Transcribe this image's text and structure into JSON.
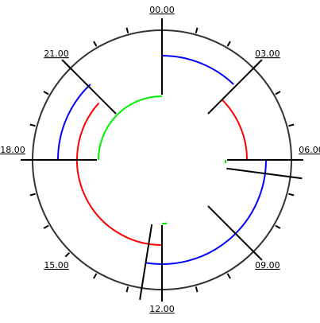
{
  "chart_data": {
    "type": "clock",
    "xlim": [
      0,
      24
    ],
    "xticks": [
      {
        "value": 0,
        "label": "00.00"
      },
      1,
      2,
      {
        "value": 3,
        "label": "03.00"
      },
      4,
      5,
      {
        "value": 6,
        "label": "06.00"
      },
      7,
      8,
      {
        "value": 9,
        "label": "09.00"
      },
      10,
      11,
      {
        "value": 12,
        "label": "12.00"
      },
      13,
      14,
      {
        "value": 15,
        "label": "15.00"
      },
      16,
      17,
      {
        "value": 18,
        "label": "18.00"
      },
      19,
      20,
      {
        "value": 21,
        "label": "21.00"
      },
      22,
      23
    ],
    "markers": [
      0,
      3,
      6,
      6.5,
      9,
      12,
      12.6,
      18,
      21
    ],
    "series": [
      {
        "color": "#0000ff",
        "ring": "outer",
        "arcs": [
          [
            0,
            2.9
          ],
          [
            6,
            12.6
          ],
          [
            18,
            21.1
          ]
        ]
      },
      {
        "color": "#ff0000",
        "ring": "middle",
        "arcs": [
          [
            3,
            6
          ],
          [
            12,
            20.8
          ]
        ]
      },
      {
        "color": "#00ee00",
        "ring": "inner",
        "arcs": [
          [
            6,
            6.2
          ],
          [
            11.7,
            12
          ],
          [
            18,
            24
          ]
        ]
      }
    ]
  }
}
